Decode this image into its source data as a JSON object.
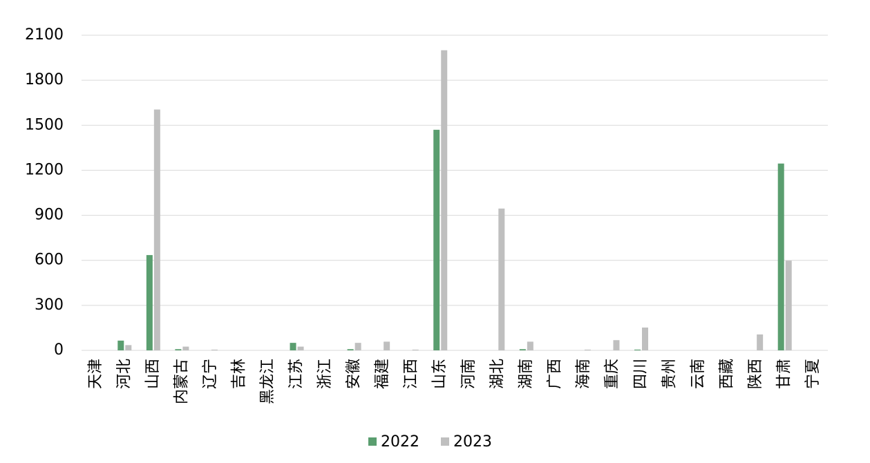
{
  "chart_data": {
    "type": "bar",
    "categories": [
      "天津",
      "河北",
      "山西",
      "内蒙古",
      "辽宁",
      "吉林",
      "黑龙江",
      "江苏",
      "浙江",
      "安徽",
      "福建",
      "江西",
      "山东",
      "河南",
      "湖北",
      "湖南",
      "广西",
      "海南",
      "重庆",
      "四川",
      "贵州",
      "云南",
      "西藏",
      "陕西",
      "甘肃",
      "宁夏"
    ],
    "series": [
      {
        "name": "2022",
        "color": "#5a9e6f",
        "values": [
          0,
          65,
          635,
          8,
          0,
          0,
          0,
          50,
          0,
          8,
          0,
          0,
          1470,
          0,
          0,
          8,
          0,
          0,
          0,
          5,
          0,
          0,
          0,
          0,
          1245,
          0
        ]
      },
      {
        "name": "2023",
        "color": "#bfbfbf",
        "values": [
          0,
          35,
          1605,
          25,
          5,
          0,
          0,
          25,
          0,
          50,
          58,
          5,
          2000,
          0,
          945,
          58,
          0,
          5,
          68,
          152,
          0,
          0,
          0,
          106,
          598,
          0
        ]
      }
    ],
    "ylim": [
      0,
      2100
    ],
    "yticks": [
      0,
      300,
      600,
      900,
      1200,
      1500,
      1800,
      2100
    ],
    "grid": true,
    "legend": "bottom"
  }
}
